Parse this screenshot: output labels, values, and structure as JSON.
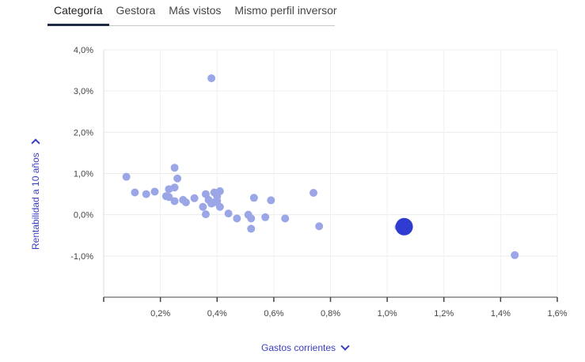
{
  "tabs": [
    {
      "label": "Categoría",
      "active": true
    },
    {
      "label": "Gestora",
      "active": false
    },
    {
      "label": "Más vistos",
      "active": false
    },
    {
      "label": "Mismo perfil inversor",
      "active": false
    }
  ],
  "colors": {
    "point": "#9aa6e6",
    "highlight": "#2f3bd1",
    "accent_text": "#3a3fc0"
  },
  "icons": {
    "x_axis_toggle": "chevron-down-icon",
    "y_axis_toggle": "chevron-down-icon"
  },
  "chart_data": {
    "type": "scatter",
    "xlabel": "Gastos corrientes",
    "ylabel": "Rentabilidad a 10 años",
    "xlim": [
      0,
      1.6
    ],
    "ylim": [
      -2,
      4
    ],
    "x_ticks": [
      "0,2%",
      "0,4%",
      "0,6%",
      "0,8%",
      "1,0%",
      "1,2%",
      "1,4%",
      "1,6%"
    ],
    "y_ticks": [
      "4,0%",
      "3,0%",
      "2,0%",
      "1,0%",
      "0,0%",
      "-1,0%"
    ],
    "grid": true,
    "series": [
      {
        "points": [
          [
            0.08,
            0.92
          ],
          [
            0.11,
            0.54
          ],
          [
            0.15,
            0.5
          ],
          [
            0.18,
            0.56
          ],
          [
            0.22,
            0.45
          ],
          [
            0.23,
            0.62
          ],
          [
            0.23,
            0.43
          ],
          [
            0.25,
            1.14
          ],
          [
            0.25,
            0.66
          ],
          [
            0.25,
            0.33
          ],
          [
            0.26,
            0.88
          ],
          [
            0.28,
            0.36
          ],
          [
            0.29,
            0.3
          ],
          [
            0.32,
            0.4
          ],
          [
            0.35,
            0.19
          ],
          [
            0.36,
            0.5
          ],
          [
            0.36,
            0.01
          ],
          [
            0.37,
            0.36
          ],
          [
            0.38,
            3.31
          ],
          [
            0.38,
            0.27
          ],
          [
            0.39,
            0.54
          ],
          [
            0.39,
            0.3
          ],
          [
            0.4,
            0.45
          ],
          [
            0.4,
            0.33
          ],
          [
            0.41,
            0.57
          ],
          [
            0.41,
            0.19
          ],
          [
            0.44,
            0.03
          ],
          [
            0.47,
            -0.09
          ],
          [
            0.51,
            0.0
          ],
          [
            0.52,
            -0.09
          ],
          [
            0.52,
            -0.34
          ],
          [
            0.53,
            0.41
          ],
          [
            0.57,
            -0.06
          ],
          [
            0.59,
            0.35
          ],
          [
            0.64,
            -0.09
          ],
          [
            0.74,
            0.53
          ],
          [
            0.76,
            -0.28
          ],
          [
            1.04,
            -0.3
          ],
          [
            1.45,
            -0.98
          ]
        ]
      }
    ],
    "highlight_point": [
      1.06,
      -0.29
    ]
  }
}
